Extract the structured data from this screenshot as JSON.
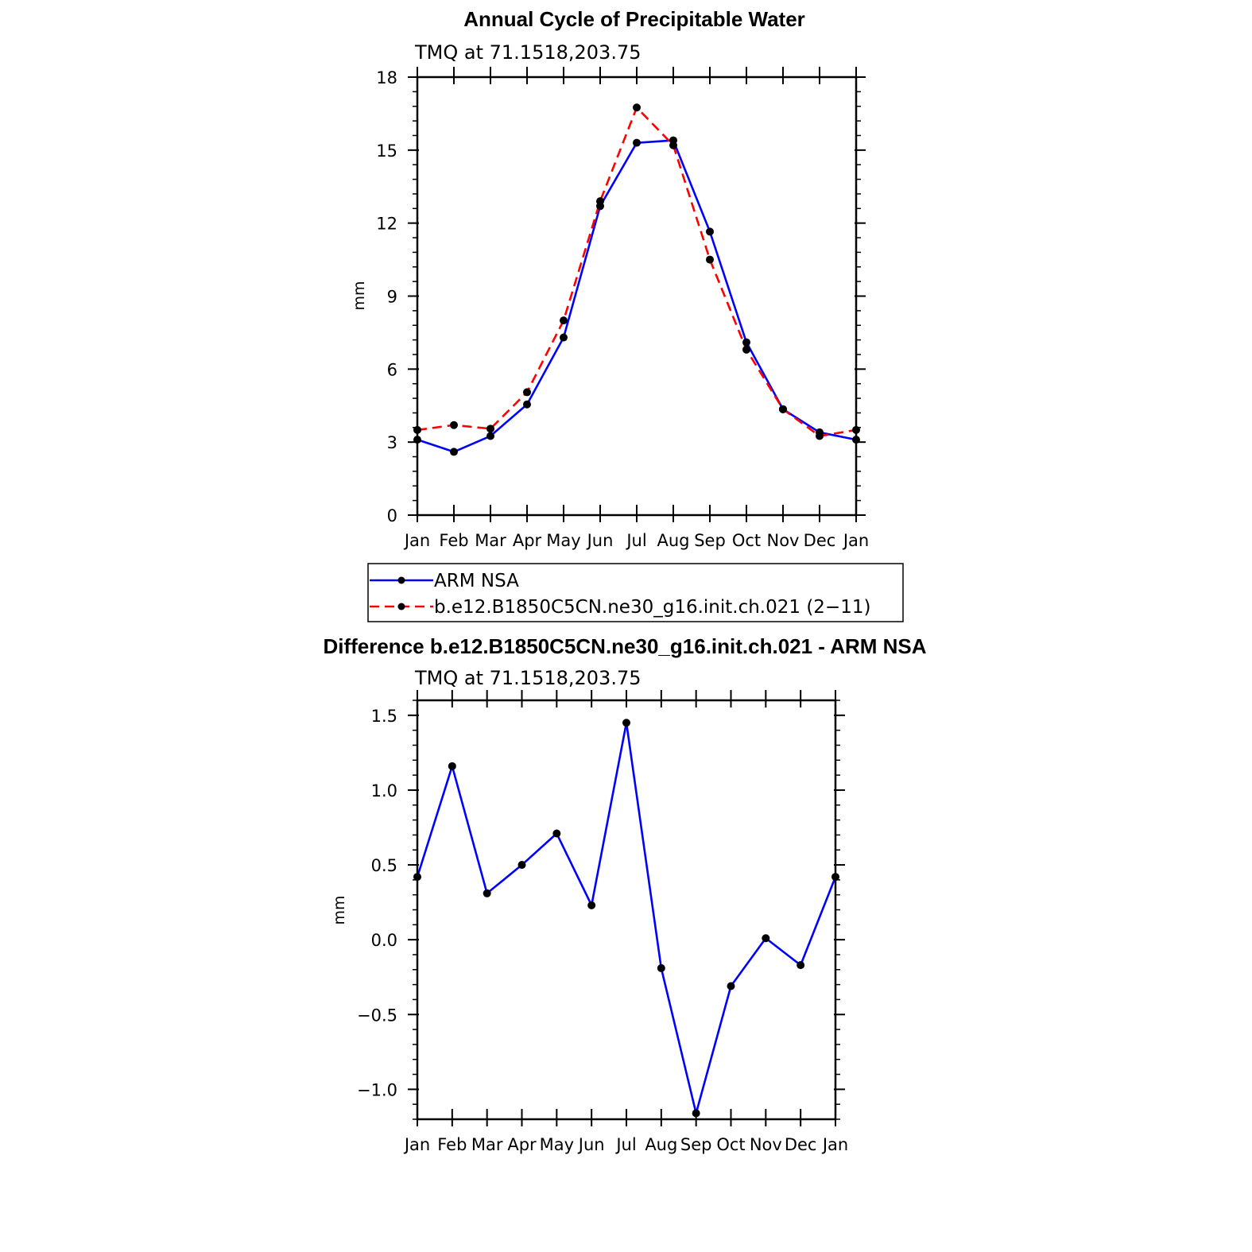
{
  "colors": {
    "blue": "#0000ff",
    "red": "#ff0000",
    "marker": "#000000"
  },
  "chart_data": [
    {
      "type": "line",
      "title": "Annual Cycle of Precipitable Water",
      "subtitle": "TMQ at 71.1518,203.75",
      "xlabel": "",
      "ylabel": "mm",
      "categories": [
        "Jan",
        "Feb",
        "Mar",
        "Apr",
        "May",
        "Jun",
        "Jul",
        "Aug",
        "Sep",
        "Oct",
        "Nov",
        "Dec",
        "Jan"
      ],
      "ylim": [
        0,
        18
      ],
      "yticks": [
        0,
        3,
        6,
        9,
        12,
        15,
        18
      ],
      "ytick_labels": [
        "0",
        "3",
        "6",
        "9",
        "12",
        "15",
        "18"
      ],
      "series": [
        {
          "name": "ARM NSA",
          "style": "solid",
          "color": "#0000ff",
          "values": [
            3.1,
            2.6,
            3.25,
            4.55,
            7.3,
            12.7,
            15.3,
            15.4,
            11.65,
            7.1,
            4.35,
            3.4,
            3.1
          ]
        },
        {
          "name": "b.e12.B1850C5CN.ne30_g16.init.ch.021 (2−11)",
          "style": "dashed",
          "color": "#ff0000",
          "values": [
            3.5,
            3.7,
            3.55,
            5.05,
            8.0,
            12.9,
            16.75,
            15.2,
            10.5,
            6.8,
            4.35,
            3.25,
            3.5
          ]
        }
      ],
      "legend": "below"
    },
    {
      "type": "line",
      "title": "Difference b.e12.B1850C5CN.ne30_g16.init.ch.021 - ARM NSA",
      "subtitle": "TMQ at 71.1518,203.75",
      "xlabel": "",
      "ylabel": "mm",
      "categories": [
        "Jan",
        "Feb",
        "Mar",
        "Apr",
        "May",
        "Jun",
        "Jul",
        "Aug",
        "Sep",
        "Oct",
        "Nov",
        "Dec",
        "Jan"
      ],
      "ylim": [
        -1.2,
        1.6
      ],
      "yticks": [
        -1.0,
        -0.5,
        0.0,
        0.5,
        1.0,
        1.5
      ],
      "ytick_labels": [
        "−1.0",
        "−0.5",
        "0.0",
        "0.5",
        "1.0",
        "1.5"
      ],
      "series": [
        {
          "name": "Difference",
          "style": "solid",
          "color": "#0000ff",
          "values": [
            0.42,
            1.16,
            0.31,
            0.5,
            0.71,
            0.23,
            1.45,
            -0.19,
            -1.16,
            -0.31,
            0.01,
            -0.17,
            0.42
          ]
        }
      ]
    }
  ]
}
